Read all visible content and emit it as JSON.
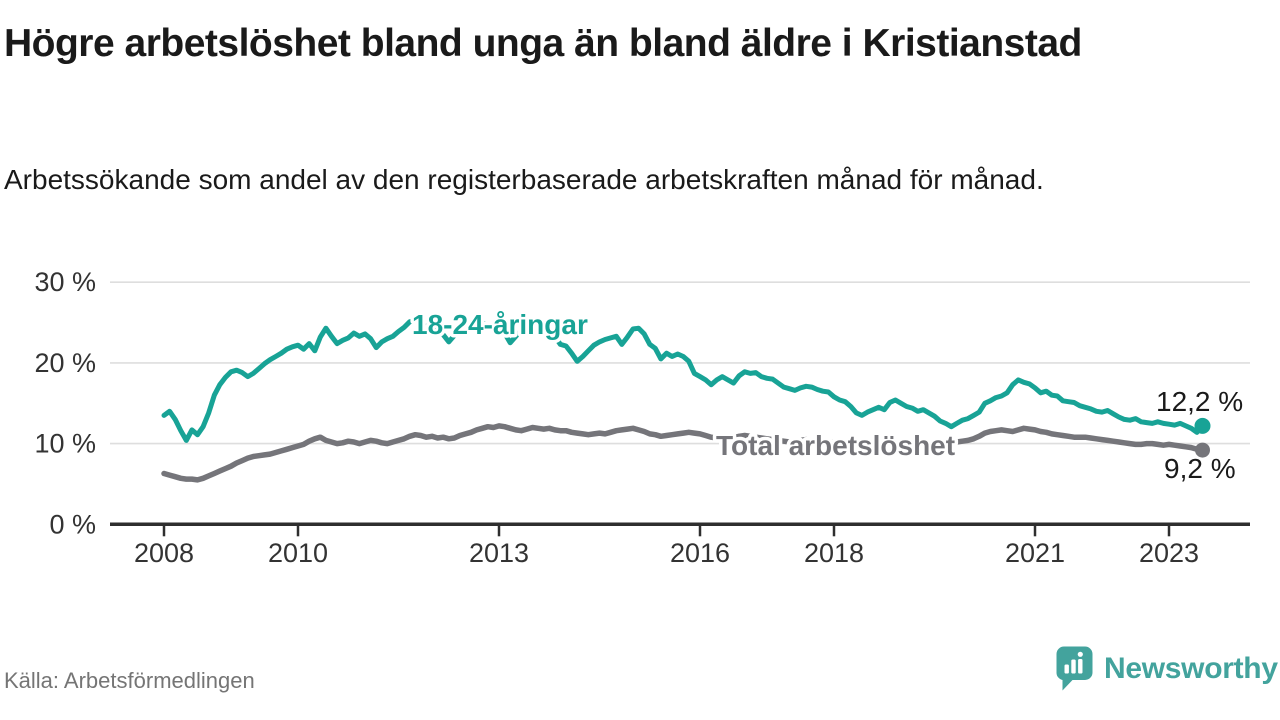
{
  "header": {
    "title": "Högre arbetslöshet bland unga än bland äldre i Kristianstad",
    "subtitle": "Arbetssökande som andel av den registerbaserade arbetskraften månad för månad."
  },
  "footer": {
    "source": "Källa: Arbetsförmedlingen",
    "brand_name": "Newsworthy"
  },
  "colors": {
    "youth_line": "#18a396",
    "total_line": "#75757a",
    "grid": "#dedede",
    "axis": "#2e2e2e",
    "tick_label": "#333333",
    "value_label": "#1a1a1a",
    "brand_teal": "#43a39d",
    "source_text": "#757575",
    "background": "#ffffff"
  },
  "chart_data": {
    "type": "line",
    "title": "Högre arbetslöshet bland unga än bland äldre i Kristianstad",
    "unit": "%",
    "x_start": "2008-01",
    "x_end": "2023-07",
    "x_ticks": [
      2008,
      2010,
      2013,
      2016,
      2018,
      2021,
      2023
    ],
    "y_ticks": [
      0,
      10,
      20,
      30
    ],
    "y_tick_labels": [
      "0 %",
      "10 %",
      "20 %",
      "30 %"
    ],
    "ylim": [
      0,
      32.5
    ],
    "grid": "horizontal-only",
    "legend_position": "inline-labels",
    "series": [
      {
        "name": "Total arbetslöshet",
        "color_key": "total_line",
        "end_value": 9.2,
        "end_label": "9,2 %",
        "values": [
          6.3,
          6.1,
          5.9,
          5.7,
          5.6,
          5.6,
          5.5,
          5.7,
          6.0,
          6.3,
          6.6,
          6.9,
          7.2,
          7.6,
          7.9,
          8.2,
          8.4,
          8.5,
          8.6,
          8.7,
          8.9,
          9.1,
          9.3,
          9.5,
          9.7,
          9.9,
          10.3,
          10.6,
          10.8,
          10.4,
          10.2,
          10.0,
          10.1,
          10.3,
          10.2,
          10.0,
          10.2,
          10.4,
          10.3,
          10.1,
          10.0,
          10.2,
          10.4,
          10.6,
          10.9,
          11.1,
          11.0,
          10.8,
          10.9,
          10.7,
          10.8,
          10.6,
          10.7,
          11.0,
          11.2,
          11.4,
          11.7,
          11.9,
          12.1,
          12.0,
          12.2,
          12.1,
          11.9,
          11.7,
          11.6,
          11.8,
          12.0,
          11.9,
          11.8,
          11.9,
          11.7,
          11.6,
          11.6,
          11.4,
          11.3,
          11.2,
          11.1,
          11.2,
          11.3,
          11.2,
          11.4,
          11.6,
          11.7,
          11.8,
          11.9,
          11.7,
          11.5,
          11.2,
          11.1,
          10.9,
          11.0,
          11.1,
          11.2,
          11.3,
          11.4,
          11.3,
          11.2,
          11.0,
          10.8,
          10.7,
          10.6,
          10.6,
          10.7,
          10.9,
          11.0,
          10.9,
          10.8,
          10.7,
          10.6,
          10.5,
          10.4,
          10.3,
          10.2,
          10.3,
          10.4,
          10.5,
          10.4,
          10.3,
          10.2,
          10.2,
          10.1,
          10.0,
          9.9,
          9.8,
          9.7,
          9.7,
          9.8,
          9.9,
          9.9,
          9.8,
          9.9,
          10.0,
          9.9,
          9.9,
          9.8,
          9.8,
          9.9,
          9.8,
          9.9,
          10.0,
          10.0,
          10.1,
          10.2,
          10.3,
          10.4,
          10.6,
          10.9,
          11.3,
          11.5,
          11.6,
          11.7,
          11.6,
          11.5,
          11.7,
          11.9,
          11.8,
          11.7,
          11.5,
          11.4,
          11.2,
          11.1,
          11.0,
          10.9,
          10.8,
          10.8,
          10.8,
          10.7,
          10.6,
          10.5,
          10.4,
          10.3,
          10.2,
          10.1,
          10.0,
          9.9,
          9.9,
          10.0,
          10.0,
          9.9,
          9.8,
          9.9,
          9.8,
          9.7,
          9.6,
          9.5,
          9.3,
          9.2
        ]
      },
      {
        "name": "18-24-åringar",
        "color_key": "youth_line",
        "end_value": 12.2,
        "end_label": "12,2 %",
        "values": [
          13.5,
          14.0,
          13.0,
          11.6,
          10.4,
          11.7,
          11.1,
          12.1,
          13.8,
          16.0,
          17.3,
          18.2,
          18.9,
          19.1,
          18.8,
          18.3,
          18.7,
          19.3,
          19.9,
          20.4,
          20.8,
          21.2,
          21.7,
          22.0,
          22.2,
          21.7,
          22.4,
          21.5,
          23.2,
          24.3,
          23.3,
          22.4,
          22.8,
          23.1,
          23.7,
          23.3,
          23.6,
          23.0,
          21.9,
          22.6,
          23.0,
          23.3,
          23.9,
          24.4,
          25.1,
          25.3,
          24.8,
          24.5,
          24.7,
          24.2,
          23.5,
          22.6,
          23.4,
          24.1,
          24.7,
          25.2,
          25.6,
          25.0,
          24.6,
          24.1,
          24.4,
          23.7,
          22.5,
          23.3,
          24.0,
          24.6,
          25.2,
          24.7,
          24.2,
          23.8,
          23.3,
          22.3,
          22.1,
          21.2,
          20.2,
          20.8,
          21.5,
          22.2,
          22.6,
          22.9,
          23.1,
          23.3,
          22.3,
          23.2,
          24.2,
          24.3,
          23.6,
          22.3,
          21.8,
          20.5,
          21.2,
          20.8,
          21.1,
          20.8,
          20.2,
          18.7,
          18.3,
          17.9,
          17.3,
          17.9,
          18.3,
          17.9,
          17.5,
          18.4,
          18.9,
          18.7,
          18.8,
          18.3,
          18.1,
          18.0,
          17.5,
          17.0,
          16.8,
          16.6,
          16.9,
          17.1,
          17.0,
          16.7,
          16.5,
          16.4,
          15.8,
          15.4,
          15.2,
          14.6,
          13.8,
          13.5,
          13.9,
          14.2,
          14.5,
          14.2,
          15.1,
          15.4,
          15.0,
          14.6,
          14.4,
          14.0,
          14.2,
          13.8,
          13.4,
          12.8,
          12.5,
          12.1,
          12.5,
          12.9,
          13.1,
          13.5,
          13.9,
          15.0,
          15.3,
          15.7,
          15.9,
          16.3,
          17.3,
          17.9,
          17.6,
          17.4,
          16.9,
          16.3,
          16.5,
          16.0,
          15.9,
          15.3,
          15.2,
          15.1,
          14.7,
          14.5,
          14.3,
          14.0,
          13.9,
          14.1,
          13.7,
          13.3,
          13.0,
          12.9,
          13.1,
          12.7,
          12.6,
          12.5,
          12.7,
          12.5,
          12.4,
          12.3,
          12.5,
          12.2,
          11.9,
          11.4,
          12.2
        ]
      }
    ]
  }
}
